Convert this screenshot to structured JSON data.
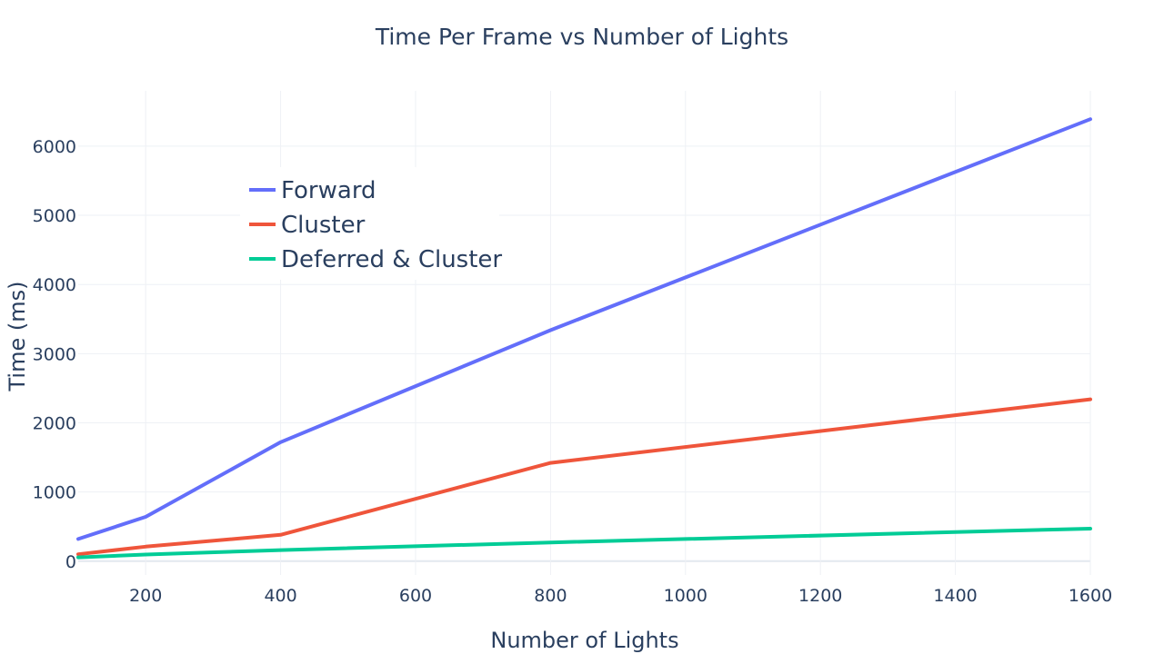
{
  "chart_data": {
    "type": "line",
    "title": "Time Per Frame vs Number of Lights",
    "xlabel": "Number of Lights",
    "ylabel": "Time (ms)",
    "xlim": [
      100,
      1600
    ],
    "ylim": [
      -200,
      6800
    ],
    "x_ticks": [
      200,
      400,
      600,
      800,
      1000,
      1200,
      1400,
      1600
    ],
    "y_ticks": [
      0,
      1000,
      2000,
      3000,
      4000,
      5000,
      6000
    ],
    "grid": true,
    "legend_position": "top-left",
    "series": [
      {
        "name": "Forward",
        "color": "#636efa",
        "x": [
          100,
          200,
          400,
          800,
          1600
        ],
        "values": [
          320,
          640,
          1720,
          3340,
          6390
        ]
      },
      {
        "name": "Cluster",
        "color": "#ef553b",
        "x": [
          100,
          200,
          400,
          800,
          1600
        ],
        "values": [
          100,
          210,
          380,
          1420,
          2340
        ]
      },
      {
        "name": "Deferred & Cluster",
        "color": "#00cc96",
        "x": [
          100,
          200,
          400,
          800,
          1600
        ],
        "values": [
          55,
          95,
          160,
          270,
          470
        ]
      }
    ]
  }
}
